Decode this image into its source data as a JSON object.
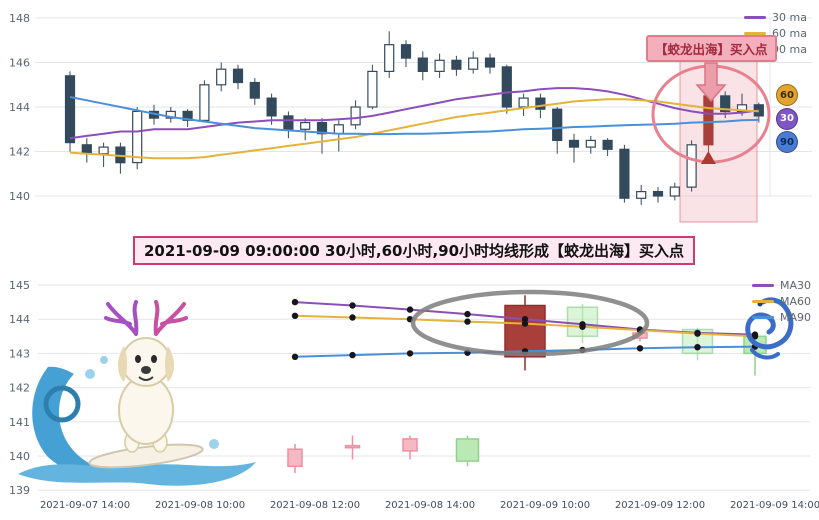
{
  "callout": {
    "text": "2021-09-09 09:00:00 30小时,60小时,90小时均线形成【蛟龙出海】买入点"
  },
  "chart_data": [
    {
      "type": "candlestick",
      "title": "",
      "ylim": [
        139.5,
        148.4
      ],
      "yticks": [
        148,
        146,
        144,
        142,
        140
      ],
      "grid": true,
      "legend_position": "top-right",
      "legend": [
        {
          "label": "30 ma",
          "color": "#8a4fb8"
        },
        {
          "label": "60 ma",
          "color": "#e3b33a"
        },
        {
          "label": "90 ma",
          "color": "#4a90d9"
        }
      ],
      "annotation_label": "【蛟龙出海】买入点",
      "signal_index": 38,
      "colors": {
        "up": "#ffffff",
        "down": "#33495c",
        "signal": "#a93f3b"
      },
      "badges": [
        {
          "label": "60",
          "bg": "#e2a42c",
          "fg": "#3a2a00"
        },
        {
          "label": "30",
          "bg": "#7e57c5",
          "fg": "#ffffff"
        },
        {
          "label": "90",
          "bg": "#4a7bd5",
          "fg": "#0a2a5a"
        }
      ],
      "candles": [
        [
          145.4,
          142.4,
          142.0,
          145.6
        ],
        [
          142.3,
          141.9,
          141.5,
          142.6
        ],
        [
          141.9,
          142.2,
          141.3,
          142.4
        ],
        [
          142.2,
          141.5,
          141.0,
          142.4
        ],
        [
          141.5,
          143.8,
          141.2,
          144.0
        ],
        [
          143.8,
          143.5,
          143.2,
          144.1
        ],
        [
          143.5,
          143.8,
          143.3,
          144.0
        ],
        [
          143.8,
          143.4,
          143.1,
          143.9
        ],
        [
          143.4,
          145.0,
          143.3,
          145.2
        ],
        [
          145.0,
          145.7,
          144.7,
          146.0
        ],
        [
          145.7,
          145.1,
          144.8,
          145.9
        ],
        [
          145.1,
          144.4,
          144.1,
          145.3
        ],
        [
          144.4,
          143.6,
          143.2,
          144.6
        ],
        [
          143.6,
          143.0,
          142.6,
          143.8
        ],
        [
          143.0,
          143.3,
          142.5,
          143.5
        ],
        [
          143.3,
          142.8,
          141.9,
          143.5
        ],
        [
          142.8,
          143.2,
          142.0,
          143.4
        ],
        [
          143.2,
          144.0,
          143.0,
          144.3
        ],
        [
          144.0,
          145.6,
          143.9,
          145.9
        ],
        [
          145.6,
          146.8,
          145.3,
          147.4
        ],
        [
          146.8,
          146.2,
          145.8,
          147.0
        ],
        [
          146.2,
          145.6,
          145.2,
          146.5
        ],
        [
          145.6,
          146.1,
          145.3,
          146.4
        ],
        [
          146.1,
          145.7,
          145.4,
          146.3
        ],
        [
          145.7,
          146.2,
          145.5,
          146.5
        ],
        [
          146.2,
          145.8,
          145.5,
          146.4
        ],
        [
          145.8,
          144.0,
          143.7,
          145.9
        ],
        [
          144.0,
          144.4,
          143.6,
          144.6
        ],
        [
          144.4,
          143.9,
          143.5,
          144.6
        ],
        [
          143.9,
          142.5,
          141.9,
          144.0
        ],
        [
          142.5,
          142.2,
          141.5,
          142.8
        ],
        [
          142.2,
          142.5,
          141.9,
          142.7
        ],
        [
          142.5,
          142.1,
          141.8,
          142.6
        ],
        [
          142.1,
          139.9,
          139.7,
          142.3
        ],
        [
          139.9,
          140.2,
          139.6,
          140.5
        ],
        [
          140.2,
          140.0,
          139.7,
          140.4
        ],
        [
          140.0,
          140.4,
          139.8,
          140.6
        ],
        [
          140.4,
          142.3,
          140.2,
          142.5
        ],
        [
          142.3,
          144.5,
          142.0,
          144.7
        ],
        [
          144.5,
          143.8,
          143.5,
          144.7
        ],
        [
          143.8,
          144.1,
          143.6,
          144.6
        ],
        [
          144.1,
          143.6,
          143.3,
          144.2
        ]
      ],
      "ma30": [
        142.6,
        142.7,
        142.8,
        142.9,
        142.9,
        143.0,
        143.0,
        143.0,
        143.1,
        143.2,
        143.3,
        143.35,
        143.4,
        143.4,
        143.4,
        143.4,
        143.45,
        143.5,
        143.6,
        143.75,
        143.9,
        144.05,
        144.2,
        144.35,
        144.45,
        144.55,
        144.65,
        144.7,
        144.8,
        144.85,
        144.85,
        144.8,
        144.7,
        144.55,
        144.35,
        144.15,
        143.95,
        143.8,
        143.7,
        143.7,
        143.75,
        143.85
      ],
      "ma60": [
        141.95,
        141.9,
        141.85,
        141.8,
        141.75,
        141.7,
        141.7,
        141.7,
        141.75,
        141.85,
        141.95,
        142.05,
        142.15,
        142.25,
        142.35,
        142.45,
        142.55,
        142.65,
        142.8,
        142.95,
        143.1,
        143.25,
        143.4,
        143.55,
        143.65,
        143.75,
        143.85,
        143.95,
        144.05,
        144.15,
        144.25,
        144.3,
        144.35,
        144.35,
        144.3,
        144.25,
        144.15,
        144.05,
        143.95,
        143.9,
        143.85,
        143.8
      ],
      "ma90": [
        144.45,
        144.3,
        144.15,
        144.0,
        143.85,
        143.7,
        143.55,
        143.45,
        143.35,
        143.25,
        143.15,
        143.05,
        143.0,
        142.95,
        142.9,
        142.85,
        142.8,
        142.8,
        142.78,
        142.78,
        142.8,
        142.8,
        142.82,
        142.85,
        142.88,
        142.9,
        142.95,
        143.0,
        143.02,
        143.05,
        143.1,
        143.12,
        143.15,
        143.18,
        143.2,
        143.22,
        143.25,
        143.3,
        143.32,
        143.35,
        143.4,
        143.42
      ]
    },
    {
      "type": "candlestick",
      "title": "",
      "ylim": [
        139,
        145.2
      ],
      "yticks": [
        145,
        144,
        143,
        142,
        141,
        140,
        139
      ],
      "grid": true,
      "legend_position": "top-right",
      "legend": [
        {
          "label": "MA30",
          "color": "#8a4fb8"
        },
        {
          "label": "MA60",
          "color": "#e3b33a"
        },
        {
          "label": "MA90",
          "color": "#4a90d9"
        }
      ],
      "x_labels": [
        "2021-09-07 14:00",
        "2021-09-08 10:00",
        "2021-09-08 12:00",
        "2021-09-08 14:00",
        "2021-09-09 10:00",
        "2021-09-09 12:00",
        "2021-09-09 14:00"
      ],
      "candles": [
        {
          "o": 139.7,
          "c": 140.2,
          "l": 139.5,
          "h": 140.35,
          "style": "pink"
        },
        {
          "o": 140.3,
          "c": 140.3,
          "l": 139.9,
          "h": 140.6,
          "style": "pink"
        },
        {
          "o": 140.15,
          "c": 140.5,
          "l": 139.9,
          "h": 140.6,
          "style": "pink"
        },
        {
          "o": 140.5,
          "c": 139.85,
          "l": 139.7,
          "h": 140.6,
          "style": "green"
        },
        {
          "o": 142.9,
          "c": 144.4,
          "l": 142.5,
          "h": 144.7,
          "style": "red"
        },
        {
          "o": 144.35,
          "c": 143.5,
          "l": 143.3,
          "h": 144.45,
          "style": "lightgreen"
        },
        {
          "o": 143.45,
          "c": 143.6,
          "l": 143.35,
          "h": 143.7,
          "style": "pink"
        },
        {
          "o": 143.7,
          "c": 143.0,
          "l": 142.8,
          "h": 143.75,
          "style": "lightgreen"
        },
        {
          "o": 143.5,
          "c": 143.0,
          "l": 142.35,
          "h": 143.6,
          "style": "green"
        }
      ],
      "ma30": [
        144.5,
        144.4,
        144.28,
        144.15,
        144.0,
        143.85,
        143.7,
        143.6,
        143.55
      ],
      "ma60": [
        144.1,
        144.05,
        144.0,
        143.93,
        143.87,
        143.78,
        143.68,
        143.58,
        143.5
      ],
      "ma90": [
        142.9,
        142.95,
        143.0,
        143.02,
        143.06,
        143.1,
        143.15,
        143.18,
        143.2
      ]
    }
  ]
}
